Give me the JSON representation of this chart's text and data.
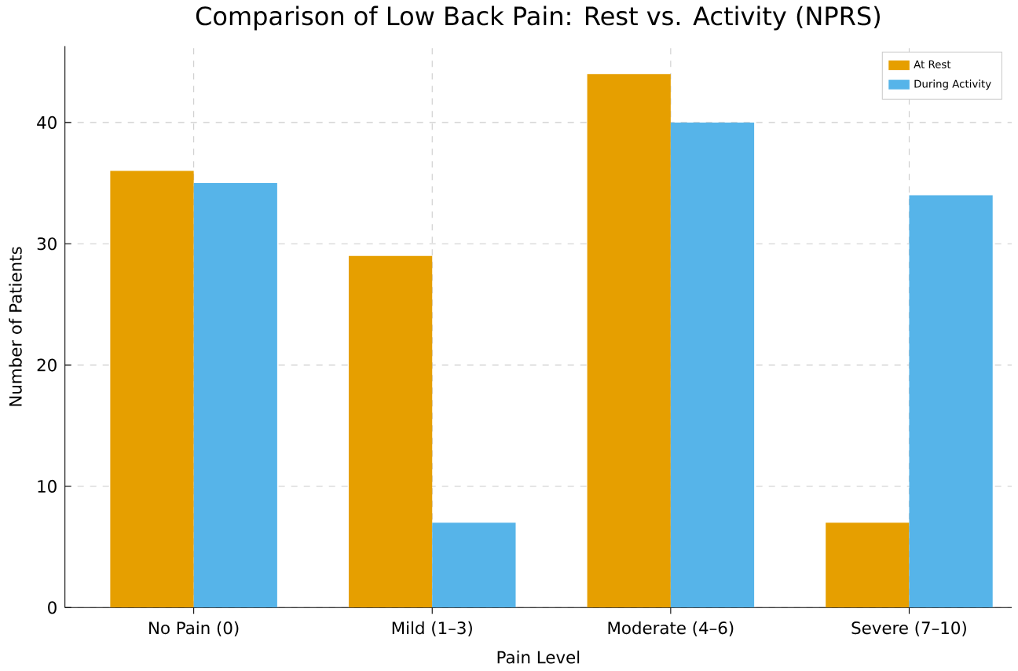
{
  "chart_data": {
    "type": "bar",
    "title": "Comparison of Low Back Pain: Rest vs. Activity (NPRS)",
    "xlabel": "Pain Level",
    "ylabel": "Number of Patients",
    "categories": [
      "No Pain (0)",
      "Mild (1–3)",
      "Moderate (4–6)",
      "Severe (7–10)"
    ],
    "series": [
      {
        "name": "At Rest",
        "color": "#e69f00",
        "values": [
          36,
          29,
          44,
          7
        ]
      },
      {
        "name": "During Activity",
        "color": "#56b4e9",
        "values": [
          35,
          7,
          40,
          34
        ]
      }
    ],
    "ylim": [
      0,
      46.3
    ],
    "yticks": [
      0,
      10,
      20,
      30,
      40
    ],
    "grid": true,
    "legend": "top right"
  }
}
